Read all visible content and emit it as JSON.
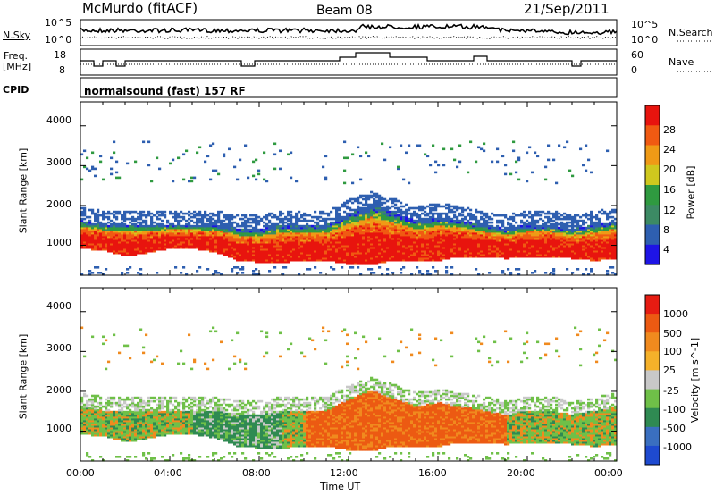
{
  "header": {
    "station": "McMurdo (fitACF)",
    "beam": "Beam 08",
    "date": "21/Sep/2011"
  },
  "noise_panel": {
    "left_label": "N.Sky",
    "right_label": "N.Search",
    "left_ticks": [
      "10^5",
      "10^0"
    ],
    "right_ticks": [
      "10^5",
      "10^0"
    ]
  },
  "freq_panel": {
    "left_label_1": "Freq.",
    "left_label_2": "[MHz]",
    "right_label": "Nave",
    "left_ticks": [
      "18",
      "8"
    ],
    "right_ticks": [
      "60",
      "0"
    ]
  },
  "cpid_panel": {
    "label": "CPID",
    "program": "normalsound (fast) 157 RF"
  },
  "colors": {
    "power": [
      "#1e14e6",
      "#2e5fb0",
      "#3c8a64",
      "#2f9a40",
      "#cfc81e",
      "#ef9a16",
      "#f05a12",
      "#e8140e"
    ],
    "velocity": [
      "#1e4ad0",
      "#3a6fc0",
      "#2f8a52",
      "#6fc048",
      "#c8c8c8",
      "#f5b12a",
      "#f08a1e",
      "#ec5a12",
      "#e61c12"
    ]
  },
  "chart_data": [
    {
      "type": "heatmap",
      "ylabel": "Slant Range [km]",
      "y_ticks": [
        "4000",
        "3000",
        "2000",
        "1000"
      ],
      "ylim": [
        250,
        4600
      ],
      "x_ticks": [
        "00:00",
        "04:00",
        "08:00",
        "12:00",
        "16:00",
        "20:00",
        "00:00"
      ],
      "colorbar_label": "Power [dB]",
      "colorbar_ticks": [
        "28",
        "24",
        "20",
        "16",
        "12",
        "8",
        "4"
      ],
      "colorbar_range": [
        0,
        32
      ],
      "band_profile": {
        "hours": [
          0,
          1,
          2,
          3,
          4,
          5,
          6,
          7,
          8,
          9,
          10,
          11,
          12,
          13,
          14,
          15,
          16,
          17,
          18,
          19,
          20,
          21,
          22,
          23,
          24
        ],
        "lower_km": [
          900,
          850,
          700,
          800,
          900,
          900,
          800,
          600,
          550,
          550,
          600,
          600,
          500,
          500,
          600,
          600,
          600,
          700,
          700,
          650,
          700,
          700,
          650,
          600,
          650
        ],
        "upper_km": [
          1600,
          1500,
          1500,
          1500,
          1500,
          1500,
          1500,
          1400,
          1400,
          1500,
          1500,
          1500,
          1800,
          2000,
          1800,
          1600,
          1700,
          1600,
          1500,
          1400,
          1500,
          1500,
          1400,
          1500,
          1600
        ]
      }
    },
    {
      "type": "heatmap",
      "ylabel": "Slant Range [km]",
      "y_ticks": [
        "4000",
        "3000",
        "2000",
        "1000"
      ],
      "ylim": [
        250,
        4600
      ],
      "x_ticks": [
        "00:00",
        "04:00",
        "08:00",
        "12:00",
        "16:00",
        "20:00",
        "00:00"
      ],
      "xlabel": "Time UT",
      "colorbar_label": "Velocity [m s^-1]",
      "colorbar_ticks": [
        "1000",
        "500",
        "100",
        "25",
        "-25",
        "-100",
        "-500",
        "-1000"
      ]
    }
  ]
}
